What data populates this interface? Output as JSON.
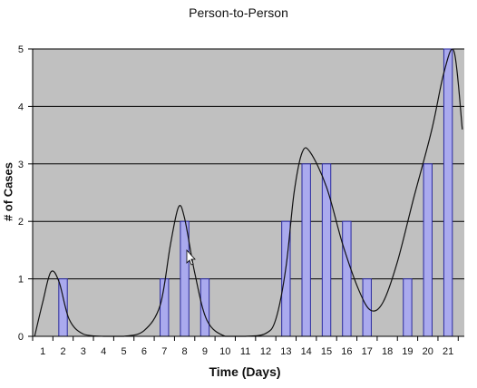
{
  "chart_data": {
    "type": "bar",
    "title": "Person-to-Person",
    "xlabel": "Time (Days)",
    "ylabel": "# of Cases",
    "categories": [
      "1",
      "2",
      "3",
      "4",
      "5",
      "6",
      "7",
      "8",
      "9",
      "10",
      "11",
      "12",
      "13",
      "14",
      "15",
      "16",
      "17",
      "18",
      "19",
      "20",
      "21"
    ],
    "values": [
      0,
      1,
      0,
      0,
      0,
      0,
      1,
      2,
      1,
      0,
      0,
      0,
      2,
      3,
      3,
      2,
      1,
      0,
      1,
      3,
      5
    ],
    "ylim": [
      0,
      5
    ],
    "yticks": [
      "0",
      "1",
      "2",
      "3",
      "4",
      "5"
    ],
    "grid": true,
    "legend": "none",
    "smoothed_curve": [
      [
        0.6,
        0
      ],
      [
        1,
        0.6
      ],
      [
        1.4,
        1.12
      ],
      [
        1.8,
        0.95
      ],
      [
        2.3,
        0.3
      ],
      [
        3,
        0.04
      ],
      [
        4,
        0
      ],
      [
        5,
        0
      ],
      [
        6,
        0.1
      ],
      [
        6.8,
        0.55
      ],
      [
        7.3,
        1.6
      ],
      [
        7.7,
        2.25
      ],
      [
        8,
        2.05
      ],
      [
        8.5,
        1.1
      ],
      [
        9.1,
        0.28
      ],
      [
        10,
        0
      ],
      [
        11,
        0
      ],
      [
        12,
        0.05
      ],
      [
        12.5,
        0.3
      ],
      [
        13,
        1.2
      ],
      [
        13.4,
        2.5
      ],
      [
        13.8,
        3.2
      ],
      [
        14.2,
        3.2
      ],
      [
        15,
        2.6
      ],
      [
        15.8,
        1.6
      ],
      [
        16.6,
        0.8
      ],
      [
        17.2,
        0.45
      ],
      [
        17.8,
        0.6
      ],
      [
        18.5,
        1.3
      ],
      [
        19.3,
        2.4
      ],
      [
        20.2,
        3.6
      ],
      [
        20.8,
        4.6
      ],
      [
        21.3,
        4.95
      ],
      [
        21.7,
        3.6
      ]
    ],
    "colors": {
      "plot_bg": "#c0c0c0",
      "bar_fill": "#aaaaee",
      "bar_stroke": "#2a2aa0",
      "curve": "#111111",
      "grid": "#000000"
    }
  }
}
